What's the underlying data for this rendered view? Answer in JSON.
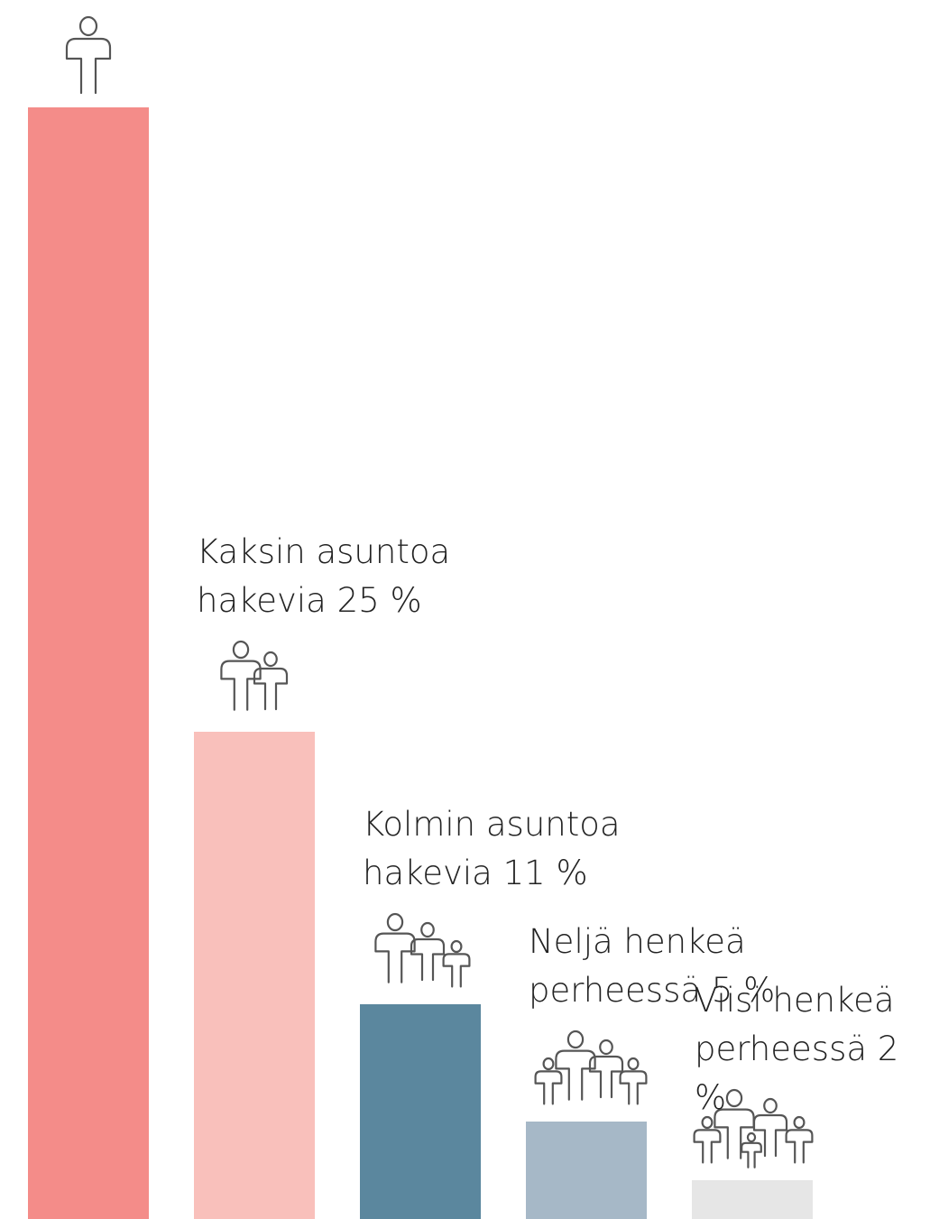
{
  "chart_data": {
    "type": "bar",
    "categories": [
      null,
      null,
      null,
      null,
      null
    ],
    "values": [
      57,
      25,
      11,
      5,
      2
    ],
    "value_labels": [
      null,
      "Kaksin asuntoa\nhakevia 25 %",
      "Kolmin asuntoa\nhakevia 11 %",
      "Neljä henkeä\nperheessä 5 %",
      "Viisi henkeä\nperheessä 2 %"
    ],
    "colors": [
      "#f48c89",
      "#f9c0bb",
      "#5b879e",
      "#a6b8c7",
      "#e6e6e6"
    ],
    "ylim": [
      0,
      57
    ]
  }
}
